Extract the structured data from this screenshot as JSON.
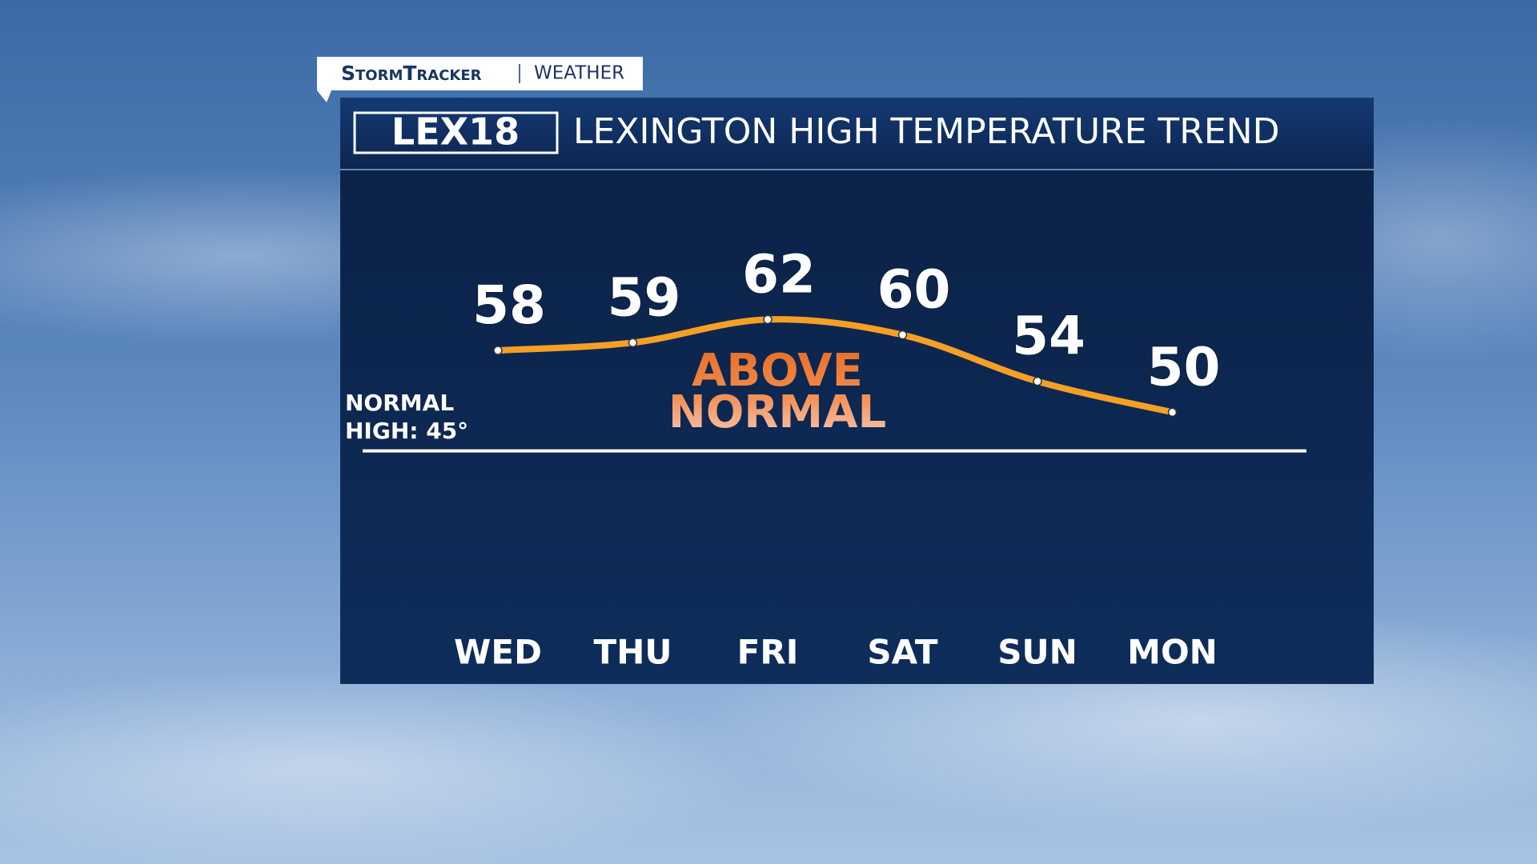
{
  "header": {
    "brand": "StormTracker",
    "section": "WEATHER"
  },
  "chart_data": {
    "type": "line",
    "logo": "LEX18",
    "title": "LEXINGTON HIGH TEMPERATURE TREND",
    "categories": [
      "WED",
      "THU",
      "FRI",
      "SAT",
      "SUN",
      "MON"
    ],
    "values": [
      58,
      59,
      62,
      60,
      54,
      50
    ],
    "color": "#f5a025",
    "ylim": [
      22,
      82
    ],
    "reference_line": {
      "value": 45,
      "label": "NORMAL HIGH: 45°"
    },
    "annotation": "ABOVE NORMAL"
  }
}
